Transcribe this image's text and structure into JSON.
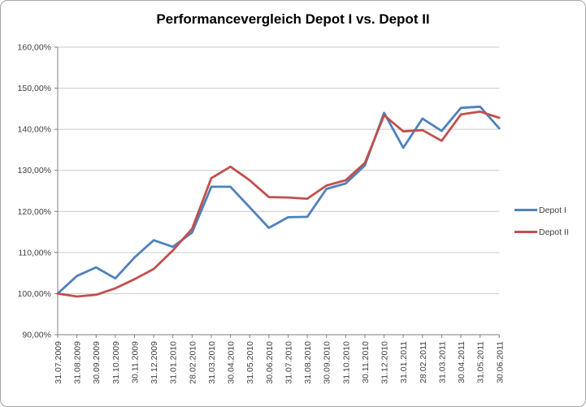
{
  "chart_data": {
    "type": "line",
    "title": "Performancevergleich Depot I vs. Depot II",
    "categories": [
      "31.07.2009",
      "31.08.2009",
      "30.09.2009",
      "31.10.2009",
      "30.11.2009",
      "31.12.2009",
      "31.01.2010",
      "28.02.2010",
      "31.03.2010",
      "30.04.2010",
      "31.05.2010",
      "30.06.2010",
      "31.07.2010",
      "31.08.2010",
      "30.09.2010",
      "31.10.2010",
      "30.11.2010",
      "31.12.2010",
      "31.01.2011",
      "28.02.2011",
      "31.03.2011",
      "30.04.2011",
      "31.05.2011",
      "30.06.2011"
    ],
    "series": [
      {
        "name": "Depot I",
        "color": "#4F81BD",
        "values": [
          100.0,
          104.3,
          106.4,
          103.7,
          108.8,
          113.0,
          111.4,
          114.9,
          126.0,
          126.0,
          121.0,
          116.0,
          118.6,
          118.7,
          125.5,
          126.8,
          131.2,
          144.0,
          135.5,
          142.6,
          139.6,
          145.2,
          145.5,
          140.2
        ]
      },
      {
        "name": "Depot II",
        "color": "#C0504D",
        "values": [
          100.0,
          99.3,
          99.7,
          101.3,
          103.5,
          106.0,
          110.5,
          115.8,
          128.1,
          130.9,
          127.6,
          123.5,
          123.4,
          123.1,
          126.3,
          127.6,
          131.8,
          143.4,
          139.5,
          139.8,
          137.2,
          143.6,
          144.3,
          142.8
        ]
      }
    ],
    "ylim": [
      90,
      160
    ],
    "y_tick_step": 10,
    "y_tick_labels": [
      "160,00%",
      "150,00%",
      "140,00%",
      "130,00%",
      "120,00%",
      "110,00%",
      "100,00%",
      "90,00%"
    ],
    "grid": true,
    "legend_position": "right",
    "x_label_rotation": -90
  },
  "legend": {
    "items": [
      {
        "label": "Depot I",
        "color": "#4F81BD"
      },
      {
        "label": "Depot II",
        "color": "#C0504D"
      }
    ]
  },
  "colors": {
    "axis": "#7f7f7f",
    "gridline": "#c9c9c9",
    "tick_text": "#3f3f3f",
    "frame": "#a6a6a6",
    "background": "#ffffff"
  }
}
